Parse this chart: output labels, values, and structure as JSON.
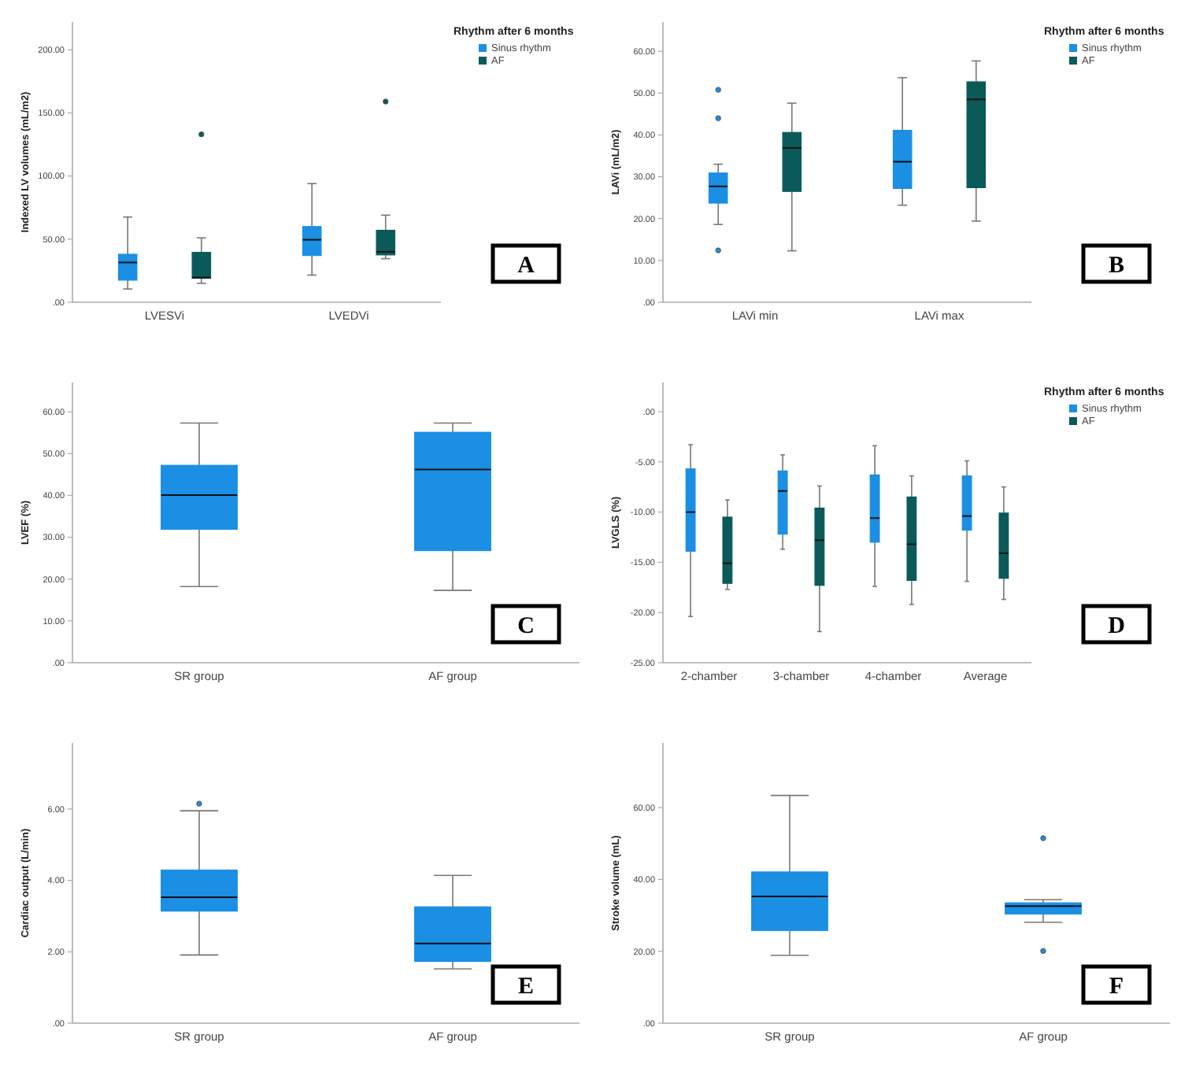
{
  "chart_data": [
    {
      "type": "box",
      "ylabel": "Indexed LV volumes (mL/m2)",
      "categories": [
        "LVESVi",
        "LVEDVi"
      ],
      "ylim": [
        0,
        222
      ],
      "yticks": [
        {
          "value": 0,
          "label": ".00"
        },
        {
          "value": 50,
          "label": "50.00"
        },
        {
          "value": 100,
          "label": "100.00"
        },
        {
          "value": 150,
          "label": "150.00"
        },
        {
          "value": 200,
          "label": "200.00"
        }
      ],
      "legend": "top right",
      "legend_title": "Rhythm after 6 months",
      "annotations": [
        "A"
      ],
      "series": [
        {
          "name": "Sinus rhythm",
          "color": "#1a8fe3",
          "boxes": [
            {
              "low": 10.5,
              "q1": 17.5,
              "median": 31.5,
              "q3": 38,
              "high": 67.5
            },
            {
              "low": 21.5,
              "q1": 37,
              "median": 49.5,
              "q3": 60,
              "high": 94
            }
          ]
        },
        {
          "name": "AF",
          "color": "#0b5a5a",
          "boxes": [
            {
              "low": 15,
              "q1": 19,
              "median": 19.5,
              "q3": 39.5,
              "high": 51,
              "outliers": [
                133
              ]
            },
            {
              "low": 34.5,
              "q1": 37.5,
              "median": 40,
              "q3": 57,
              "high": 69,
              "outliers": [
                159
              ]
            }
          ]
        }
      ]
    },
    {
      "type": "box",
      "ylabel": "LAVi (mL/m2)",
      "categories": [
        "LAVi min",
        "LAVi max"
      ],
      "ylim": [
        0,
        67
      ],
      "yticks": [
        {
          "value": 0,
          "label": ".00"
        },
        {
          "value": 10,
          "label": "10.00"
        },
        {
          "value": 20,
          "label": "20.00"
        },
        {
          "value": 30,
          "label": "30.00"
        },
        {
          "value": 40,
          "label": "40.00"
        },
        {
          "value": 50,
          "label": "50.00"
        },
        {
          "value": 60,
          "label": "60.00"
        }
      ],
      "legend": "top right",
      "legend_title": "Rhythm after 6 months",
      "annotations": [
        "B"
      ],
      "series": [
        {
          "name": "Sinus rhythm",
          "color": "#1a8fe3",
          "boxes": [
            {
              "low": 18.6,
              "q1": 23.7,
              "median": 27.7,
              "q3": 30.9,
              "high": 33,
              "outliers": [
                50.8,
                44,
                12.4
              ]
            },
            {
              "low": 23.2,
              "q1": 27.2,
              "median": 33.6,
              "q3": 41.1,
              "high": 53.7
            }
          ]
        },
        {
          "name": "AF",
          "color": "#0b5a5a",
          "boxes": [
            {
              "low": 12.3,
              "q1": 26.5,
              "median": 36.9,
              "q3": 40.6,
              "high": 47.6
            },
            {
              "low": 19.4,
              "q1": 27.4,
              "median": 48.5,
              "q3": 52.7,
              "high": 57.7
            }
          ]
        }
      ]
    },
    {
      "type": "box",
      "ylabel": "LVEF (%)",
      "categories": [
        "SR group",
        "AF group"
      ],
      "ylim": [
        0,
        67
      ],
      "yticks": [
        {
          "value": 0,
          "label": ".00"
        },
        {
          "value": 10,
          "label": "10.00"
        },
        {
          "value": 20,
          "label": "20.00"
        },
        {
          "value": 30,
          "label": "30.00"
        },
        {
          "value": 40,
          "label": "40.00"
        },
        {
          "value": 50,
          "label": "50.00"
        },
        {
          "value": 60,
          "label": "60.00"
        }
      ],
      "annotations": [
        "C"
      ],
      "series": [
        {
          "color": "#1a8fe3",
          "boxes": [
            {
              "low": 18.2,
              "q1": 31.9,
              "median": 40.1,
              "q3": 47.2,
              "high": 57.3
            },
            {
              "low": 17.3,
              "q1": 26.8,
              "median": 46.2,
              "q3": 55.1,
              "high": 57.3
            }
          ]
        }
      ]
    },
    {
      "type": "box",
      "ylabel": "LVGLS (%)",
      "categories": [
        "2-chamber",
        "3-chamber",
        "4-chamber",
        "Average"
      ],
      "ylim": [
        -25,
        2.9
      ],
      "yticks": [
        {
          "value": -25,
          "label": "-25.00"
        },
        {
          "value": -20,
          "label": "-20.00"
        },
        {
          "value": -15,
          "label": "-15.00"
        },
        {
          "value": -10,
          "label": "-10.00"
        },
        {
          "value": -5,
          "label": "-5.00"
        },
        {
          "value": 0,
          "label": ".00"
        }
      ],
      "legend": "top right",
      "legend_title": "Rhythm after 6 months",
      "annotations": [
        "D"
      ],
      "series": [
        {
          "name": "Sinus rhythm",
          "color": "#1a8fe3",
          "boxes": [
            {
              "low": -20.4,
              "q1": -13.9,
              "median": -10,
              "q3": -5.7,
              "high": -3.3
            },
            {
              "low": -13.7,
              "q1": -12.2,
              "median": -7.9,
              "q3": -5.9,
              "high": -4.3
            },
            {
              "low": -17.4,
              "q1": -13,
              "median": -10.6,
              "q3": -6.3,
              "high": -3.4
            },
            {
              "low": -16.9,
              "q1": -11.8,
              "median": -10.4,
              "q3": -6.4,
              "high": -4.9
            }
          ]
        },
        {
          "name": "AF",
          "color": "#0b5a5a",
          "boxes": [
            {
              "low": -17.7,
              "q1": -17.1,
              "median": -15.1,
              "q3": -10.5,
              "high": -8.8
            },
            {
              "low": -21.9,
              "q1": -17.3,
              "median": -12.8,
              "q3": -9.6,
              "high": -7.4
            },
            {
              "low": -19.2,
              "q1": -16.8,
              "median": -13.2,
              "q3": -8.5,
              "high": -6.4
            },
            {
              "low": -18.7,
              "q1": -16.6,
              "median": -14.1,
              "q3": -10.1,
              "high": -7.5
            }
          ]
        }
      ]
    },
    {
      "type": "box",
      "ylabel": "Cardiac output (L/min)",
      "categories": [
        "SR group",
        "AF group"
      ],
      "ylim": [
        0,
        7.85
      ],
      "yticks": [
        {
          "value": 0,
          "label": ".00"
        },
        {
          "value": 2,
          "label": "2.00"
        },
        {
          "value": 4,
          "label": "4.00"
        },
        {
          "value": 6,
          "label": "6.00"
        }
      ],
      "annotations": [
        "E"
      ],
      "series": [
        {
          "color": "#1a8fe3",
          "boxes": [
            {
              "low": 1.91,
              "q1": 3.14,
              "median": 3.53,
              "q3": 4.29,
              "high": 5.95,
              "outliers": [
                6.15
              ]
            },
            {
              "low": 1.52,
              "q1": 1.73,
              "median": 2.23,
              "q3": 3.26,
              "high": 4.14
            }
          ]
        }
      ]
    },
    {
      "type": "box",
      "ylabel": "Stroke volume (mL)",
      "categories": [
        "SR group",
        "AF group"
      ],
      "ylim": [
        0,
        78
      ],
      "yticks": [
        {
          "value": 0,
          "label": ".00"
        },
        {
          "value": 20,
          "label": "20.00"
        },
        {
          "value": 40,
          "label": "40.00"
        },
        {
          "value": 60,
          "label": "60.00"
        }
      ],
      "annotations": [
        "F"
      ],
      "series": [
        {
          "color": "#1a8fe3",
          "boxes": [
            {
              "low": 18.9,
              "q1": 25.8,
              "median": 35.3,
              "q3": 42.1,
              "high": 63.4
            },
            {
              "low": 28.1,
              "q1": 30.4,
              "median": 32.6,
              "q3": 33.5,
              "high": 34.4,
              "outliers": [
                51.5,
                20.1
              ]
            }
          ]
        }
      ]
    }
  ]
}
